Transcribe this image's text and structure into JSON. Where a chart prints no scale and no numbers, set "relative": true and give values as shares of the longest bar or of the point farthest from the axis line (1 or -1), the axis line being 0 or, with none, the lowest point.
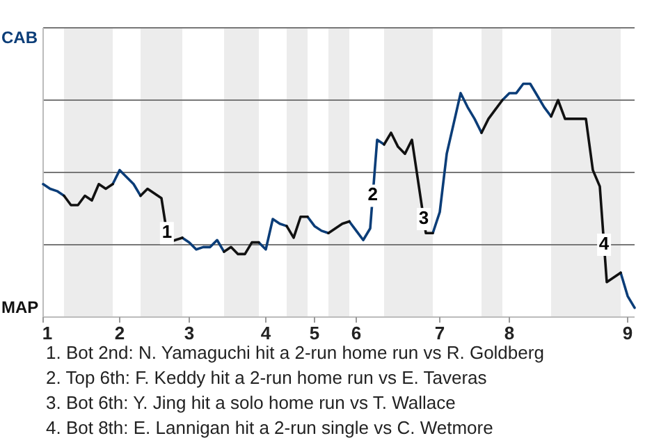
{
  "chart_data": {
    "type": "line",
    "relative": true,
    "categories": [
      "1",
      null,
      null,
      null,
      null,
      null,
      null,
      null,
      null,
      null,
      null,
      "2",
      null,
      null,
      null,
      null,
      null,
      null,
      null,
      null,
      null,
      "3",
      null,
      null,
      null,
      null,
      null,
      null,
      null,
      null,
      null,
      null,
      "4",
      null,
      null,
      null,
      null,
      null,
      null,
      "5",
      null,
      null,
      null,
      null,
      null,
      "6",
      null,
      null,
      null,
      null,
      null,
      null,
      null,
      null,
      null,
      null,
      null,
      "7",
      null,
      null,
      null,
      null,
      null,
      null,
      null,
      null,
      null,
      "8",
      null,
      null,
      null,
      null,
      null,
      null,
      null,
      null,
      null,
      null,
      null,
      null,
      null,
      null,
      null,
      null,
      "9",
      null
    ],
    "grid": "y",
    "marker": "none",
    "line_style": "solid",
    "series": [
      {
        "color": "#0b3d78",
        "values": [
          0.57,
          0.55,
          0.54,
          0.52,
          null,
          null,
          null,
          null,
          null,
          null,
          0.57,
          0.63,
          0.6,
          0.57,
          0.52,
          null,
          null,
          null,
          null,
          null,
          0.34,
          0.32,
          0.29,
          0.3,
          0.3,
          0.33,
          0.28,
          null,
          null,
          null,
          null,
          0.32,
          0.29,
          0.42,
          0.4,
          0.39,
          null,
          null,
          0.43,
          0.39,
          0.37,
          0.36,
          null,
          null,
          0.41,
          0.37,
          0.33,
          0.38,
          0.76,
          0.74,
          null,
          null,
          null,
          null,
          null,
          null,
          0.36,
          0.45,
          0.7,
          0.83,
          0.96,
          0.9,
          0.85,
          0.79,
          null,
          null,
          0.93,
          0.96,
          0.96,
          1,
          1,
          0.95,
          0.9,
          0.86,
          null,
          null,
          null,
          null,
          null,
          null,
          null,
          null,
          null,
          0.19,
          0.09,
          0.04
        ]
      },
      {
        "color": "#111111",
        "values": [
          null,
          null,
          null,
          0.52,
          0.48,
          0.48,
          0.52,
          0.5,
          0.57,
          0.55,
          0.57,
          null,
          null,
          null,
          0.52,
          0.55,
          0.53,
          0.51,
          0.32,
          0.33,
          0.34,
          null,
          null,
          null,
          null,
          null,
          0.28,
          0.3,
          0.27,
          0.27,
          0.32,
          0.32,
          null,
          null,
          null,
          0.39,
          0.34,
          0.43,
          0.43,
          null,
          null,
          0.36,
          0.38,
          0.4,
          0.41,
          null,
          null,
          null,
          null,
          0.74,
          0.79,
          0.73,
          0.7,
          0.76,
          0.56,
          0.36,
          0.36,
          null,
          null,
          null,
          null,
          null,
          null,
          0.79,
          0.85,
          0.89,
          0.93,
          null,
          null,
          null,
          null,
          null,
          null,
          0.86,
          0.93,
          0.85,
          0.85,
          0.85,
          0.85,
          0.63,
          0.56,
          0.15,
          0.17,
          0.19,
          null,
          null
        ]
      }
    ],
    "annotations": [
      "CAB",
      "MAP",
      {
        "text": "1",
        "y": 0.36
      },
      {
        "text": "2",
        "y": 0.52
      },
      {
        "text": "3",
        "y": 0.42
      },
      {
        "text": "4",
        "y": 0.31
      },
      "1. Bot 2nd: N. Yamaguchi hit a 2-run home run vs R. Goldberg",
      "2. Top 6th: F. Keddy hit a 2-run home run vs E. Taveras",
      "3. Bot 6th: Y. Jing hit a solo home run vs T. Wallace",
      "4. Bot 8th: E. Lannigan hit a 2-run single vs C. Wetmore"
    ]
  }
}
